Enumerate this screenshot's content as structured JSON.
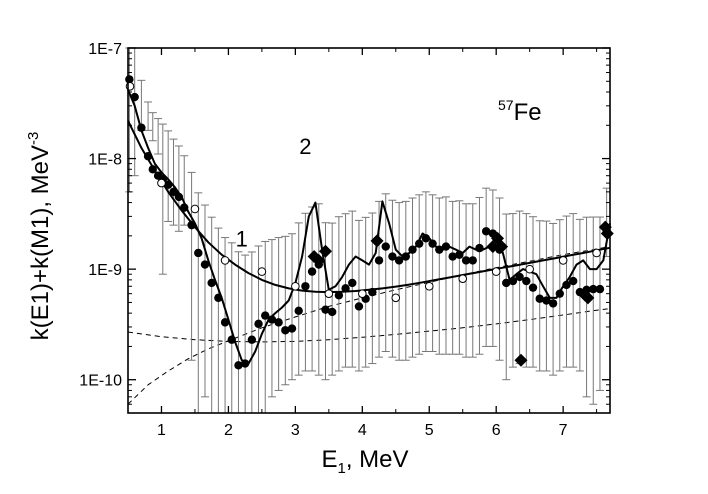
{
  "chart_data": {
    "type": "scatter",
    "title": "",
    "isotope": {
      "mass": "57",
      "symbol": "Fe"
    },
    "xlabel": {
      "base": "E",
      "sub": "1",
      "rest": ", MeV"
    },
    "ylabel": {
      "text": "k(E1)+k(M1), MeV",
      "sup": "-3"
    },
    "xlim": [
      0.5,
      7.7
    ],
    "ylim": [
      5e-11,
      1e-07
    ],
    "yscale": "log",
    "grid": false,
    "x_ticks": [
      1,
      2,
      3,
      4,
      5,
      6,
      7
    ],
    "x_tick_labels": [
      "1",
      "2",
      "3",
      "4",
      "5",
      "6",
      "7"
    ],
    "y_ticks": [
      1e-10,
      1e-09,
      1e-08,
      1e-07
    ],
    "y_tick_labels": [
      "1E-10",
      "1E-9",
      "1E-8",
      "1E-7"
    ],
    "annotations": [
      {
        "text": "1",
        "x": 2.2,
        "y": 1.6e-09
      },
      {
        "text": "2",
        "x": 3.15,
        "y": 1.1e-08
      }
    ],
    "series": [
      {
        "kind": "filled_circles_with_errorbars",
        "x": [
          0.52,
          0.6,
          0.7,
          0.8,
          0.87,
          0.95,
          1.02,
          1.1,
          1.18,
          1.26,
          1.34,
          1.45,
          1.55,
          1.65,
          1.75,
          1.85,
          1.95,
          2.05,
          2.15,
          2.25,
          2.35,
          2.45,
          2.55,
          2.65,
          2.75,
          2.85,
          2.95,
          3.05,
          3.15,
          3.25,
          3.35,
          3.45,
          3.55,
          3.65,
          3.75,
          3.85,
          3.95,
          4.05,
          4.15,
          4.25,
          4.35,
          4.45,
          4.55,
          4.65,
          4.75,
          4.85,
          4.95,
          5.05,
          5.15,
          5.25,
          5.35,
          5.45,
          5.55,
          5.65,
          5.75,
          5.85,
          5.95,
          6.05,
          6.15,
          6.25,
          6.35,
          6.45,
          6.55,
          6.65,
          6.75,
          6.85,
          6.95,
          7.05,
          7.15,
          7.25,
          7.35,
          7.45,
          7.55,
          7.65
        ],
        "y": [
          5.2e-08,
          3.6e-08,
          1.9e-08,
          1.05e-08,
          8e-09,
          7e-09,
          6.5e-09,
          5.8e-09,
          5e-09,
          4.5e-09,
          3.6e-09,
          2.5e-09,
          1.4e-09,
          1.1e-09,
          7.5e-10,
          5.5e-10,
          3.3e-10,
          2.3e-10,
          1.35e-10,
          1.4e-10,
          2.3e-10,
          3.2e-10,
          3.8e-10,
          3.5e-10,
          3.3e-10,
          2.8e-10,
          2.9e-10,
          4.2e-10,
          7e-10,
          9.5e-10,
          1.1e-09,
          4.3e-10,
          4.1e-10,
          5.8e-10,
          6.7e-10,
          7.5e-10,
          4.6e-10,
          5.4e-10,
          6.2e-10,
          1.2e-09,
          1.6e-09,
          1.3e-09,
          1.2e-09,
          1.3e-09,
          1.5e-09,
          1.7e-09,
          1.9e-09,
          1.7e-09,
          1.5e-09,
          1.6e-09,
          1.3e-09,
          1.35e-09,
          1.2e-09,
          1.2e-09,
          1.55e-09,
          2.2e-09,
          2.1e-09,
          1.5e-09,
          7.5e-10,
          7.8e-10,
          8.5e-10,
          7.8e-10,
          6.8e-10,
          5.4e-10,
          5.2e-10,
          4.9e-10,
          6e-10,
          7.2e-10,
          7.8e-10,
          6.2e-10,
          6.5e-10,
          6.6e-10,
          6.6e-10,
          2.2e-09
        ],
        "err_low": [
          5e-09,
          7e-09,
          1.8e-08,
          1.8e-08,
          1.45e-08,
          1.1e-08,
          9e-10,
          2.7e-09,
          2.5e-09,
          2.2e-09,
          2.5e-09,
          1.5e-10,
          3e-11,
          7e-11,
          3e-11,
          3e-11,
          3e-11,
          3e-11,
          3e-11,
          3e-11,
          3e-11,
          3e-11,
          5e-11,
          7e-11,
          8e-11,
          9e-11,
          1e-10,
          1.1e-10,
          1.2e-10,
          1.2e-10,
          1.1e-10,
          1e-10,
          1.1e-10,
          1.2e-10,
          1.3e-10,
          1.3e-10,
          1.2e-10,
          1.3e-10,
          1.4e-10,
          1.6e-10,
          1.8e-10,
          1.6e-10,
          1.5e-10,
          1.5e-10,
          1.6e-10,
          1.7e-10,
          1.8e-10,
          1.8e-10,
          1.7e-10,
          1.7e-10,
          1.7e-10,
          1.7e-10,
          1.6e-10,
          1.6e-10,
          1.7e-10,
          2e-10,
          2e-10,
          1.5e-10,
          1e-10,
          1.3e-10,
          1.4e-10,
          1.3e-10,
          1.3e-10,
          1.2e-10,
          1.2e-10,
          1.1e-10,
          1.2e-10,
          1.3e-10,
          1.3e-10,
          1.2e-10,
          7e-11,
          6e-11,
          8e-11,
          1.3e-09
        ],
        "err_high": [
          1.05e-07,
          7e-08,
          3.2e-08,
          2.2e-08,
          1.8e-08,
          1.6e-08,
          1.4e-08,
          1.2e-08,
          1e-08,
          8.5e-09,
          7e-09,
          5e-09,
          3.5e-09,
          2.7e-09,
          2.2e-09,
          1.8e-09,
          1.6e-09,
          1.5e-09,
          1.3e-09,
          1.2e-09,
          1.2e-09,
          1.3e-09,
          1.4e-09,
          1.5e-09,
          1.6e-09,
          1.7e-09,
          1.8e-09,
          2.2e-09,
          2.5e-09,
          2.7e-09,
          2.8e-09,
          2.2e-09,
          2.2e-09,
          2.4e-09,
          2.5e-09,
          2.6e-09,
          2.3e-09,
          2.4e-09,
          2.6e-09,
          2.9e-09,
          3.2e-09,
          2.9e-09,
          2.8e-09,
          2.8e-09,
          2.9e-09,
          3e-09,
          3.1e-09,
          3e-09,
          2.9e-09,
          2.9e-09,
          2.8e-09,
          2.8e-09,
          2.7e-09,
          2.7e-09,
          2.9e-09,
          3.2e-09,
          3.1e-09,
          2.9e-09,
          2.4e-09,
          2.4e-09,
          2.5e-09,
          2.4e-09,
          2.3e-09,
          2.2e-09,
          2.2e-09,
          2.1e-09,
          2.2e-09,
          2.3e-09,
          2.4e-09,
          2.2e-09,
          2.3e-09,
          2.3e-09,
          2.3e-09,
          3.2e-09
        ]
      },
      {
        "kind": "open_circles",
        "x": [
          0.53,
          1.0,
          1.5,
          1.95,
          2.5,
          3.0,
          3.5,
          4.0,
          4.5,
          5.0,
          5.5,
          6.0,
          6.5,
          7.0,
          7.5
        ],
        "y": [
          4.5e-08,
          6e-09,
          3.5e-09,
          1.2e-09,
          9.5e-10,
          7e-10,
          6e-10,
          6e-10,
          5.5e-10,
          7e-10,
          8.2e-10,
          9.5e-10,
          1e-09,
          1.2e-09,
          1.4e-09
        ]
      },
      {
        "kind": "diamonds",
        "x": [
          3.28,
          3.35,
          3.45,
          4.22,
          5.95,
          6.02,
          6.08,
          6.37,
          7.33,
          7.37,
          7.63,
          7.66
        ],
        "y": [
          1.3e-09,
          1.2e-09,
          1.45e-09,
          1.8e-09,
          1.6e-09,
          1.9e-09,
          1.6e-09,
          1.5e-10,
          5.8e-10,
          5.5e-10,
          2.4e-09,
          2.1e-09
        ]
      },
      {
        "kind": "line_model_1",
        "x": [
          0.5,
          0.7,
          0.9,
          1.1,
          1.3,
          1.5,
          1.7,
          1.9,
          2.1,
          2.3,
          2.5,
          2.7,
          2.9,
          3.1,
          3.3,
          3.5,
          3.7,
          3.9,
          4.1,
          4.3,
          4.5,
          4.7,
          4.9,
          5.1,
          5.3,
          5.5,
          5.7,
          5.9,
          6.1,
          6.3,
          6.5,
          6.7,
          6.9,
          7.1,
          7.3,
          7.5,
          7.7
        ],
        "y": [
          2.2e-08,
          1.25e-08,
          7.8e-09,
          5e-09,
          3.4e-09,
          2.4e-09,
          1.75e-09,
          1.35e-09,
          1.1e-09,
          9.2e-10,
          8e-10,
          7.2e-10,
          6.7e-10,
          6.4e-10,
          6.25e-10,
          6.2e-10,
          6.25e-10,
          6.35e-10,
          6.5e-10,
          6.7e-10,
          6.95e-10,
          7.25e-10,
          7.6e-10,
          8e-10,
          8.4e-10,
          8.85e-10,
          9.3e-10,
          9.8e-10,
          1.03e-09,
          1.08e-09,
          1.14e-09,
          1.2e-09,
          1.26e-09,
          1.33e-09,
          1.4e-09,
          1.48e-09,
          1.56e-09
        ]
      },
      {
        "kind": "line_model_2",
        "x": [
          0.5,
          0.6,
          0.7,
          0.8,
          0.9,
          1.0,
          1.1,
          1.2,
          1.3,
          1.4,
          1.5,
          1.6,
          1.7,
          1.8,
          1.9,
          2.0,
          2.1,
          2.2,
          2.3,
          2.4,
          2.5,
          2.6,
          2.7,
          2.8,
          2.9,
          3.0,
          3.1,
          3.2,
          3.3,
          3.4,
          3.5,
          3.6,
          3.7,
          3.8,
          3.9,
          4.0,
          4.1,
          4.2,
          4.3,
          4.4,
          4.5,
          4.6,
          4.7,
          4.8,
          4.9,
          5.0,
          5.1,
          5.2,
          5.3,
          5.4,
          5.5,
          5.6,
          5.7,
          5.8,
          5.9,
          6.0,
          6.1,
          6.2,
          6.3,
          6.4,
          6.5,
          6.6,
          6.7,
          6.8,
          6.9,
          7.0,
          7.1,
          7.2,
          7.3,
          7.4,
          7.5,
          7.6,
          7.7
        ],
        "y": [
          4.2e-08,
          3e-08,
          1.8e-08,
          1.25e-08,
          9e-09,
          7.5e-09,
          6.5e-09,
          5.5e-09,
          4.5e-09,
          3.3e-09,
          2.6e-09,
          1.9e-09,
          1.2e-09,
          8e-10,
          5.5e-10,
          3.5e-10,
          2.2e-10,
          1.5e-10,
          1.4e-10,
          1.8e-10,
          2.6e-10,
          3.5e-10,
          4e-10,
          4.5e-10,
          5.2e-10,
          7.5e-10,
          1.3e-09,
          3e-09,
          4e-09,
          1.5e-09,
          6.5e-10,
          7e-10,
          8.5e-10,
          1.1e-09,
          1.3e-09,
          1.2e-09,
          1.1e-09,
          1.4e-09,
          4.1e-09,
          2.6e-09,
          1.5e-09,
          1.3e-09,
          1.4e-09,
          1.6e-09,
          2.1e-09,
          1.9e-09,
          1.6e-09,
          1.5e-09,
          1.6e-09,
          1.5e-09,
          1.4e-09,
          1.6e-09,
          1.5e-09,
          1.5e-09,
          1.6e-09,
          1.9e-09,
          1.4e-09,
          8e-10,
          9e-10,
          1e-09,
          9.5e-10,
          9e-10,
          7e-10,
          5.5e-10,
          5.5e-10,
          7e-10,
          8.5e-10,
          1.1e-09,
          1.2e-09,
          1e-09,
          1e-09,
          1.2e-09,
          2.6e-09
        ]
      },
      {
        "kind": "dashed_rising",
        "x": [
          0.5,
          0.8,
          1.1,
          1.4,
          1.7,
          2.0,
          2.5,
          3.0,
          3.5,
          4.0,
          4.5,
          5.0,
          5.5,
          6.0,
          6.5,
          7.0,
          7.5,
          7.7
        ],
        "y": [
          6e-11,
          9e-11,
          1.2e-10,
          1.55e-10,
          1.9e-10,
          2.25e-10,
          2.95e-10,
          3.7e-10,
          4.6e-10,
          5.5e-10,
          6.5e-10,
          7.6e-10,
          8.9e-10,
          1.03e-09,
          1.18e-09,
          1.35e-09,
          1.52e-09,
          1.6e-09
        ]
      },
      {
        "kind": "dashed_flat",
        "x": [
          0.5,
          1.0,
          1.5,
          2.0,
          2.5,
          3.0,
          3.5,
          4.0,
          4.5,
          5.0,
          5.5,
          6.0,
          6.5,
          7.0,
          7.5,
          7.7
        ],
        "y": [
          2.7e-10,
          2.45e-10,
          2.3e-10,
          2.22e-10,
          2.2e-10,
          2.22e-10,
          2.3e-10,
          2.42e-10,
          2.57e-10,
          2.75e-10,
          2.95e-10,
          3.2e-10,
          3.5e-10,
          3.85e-10,
          4.25e-10,
          4.4e-10
        ]
      }
    ]
  }
}
